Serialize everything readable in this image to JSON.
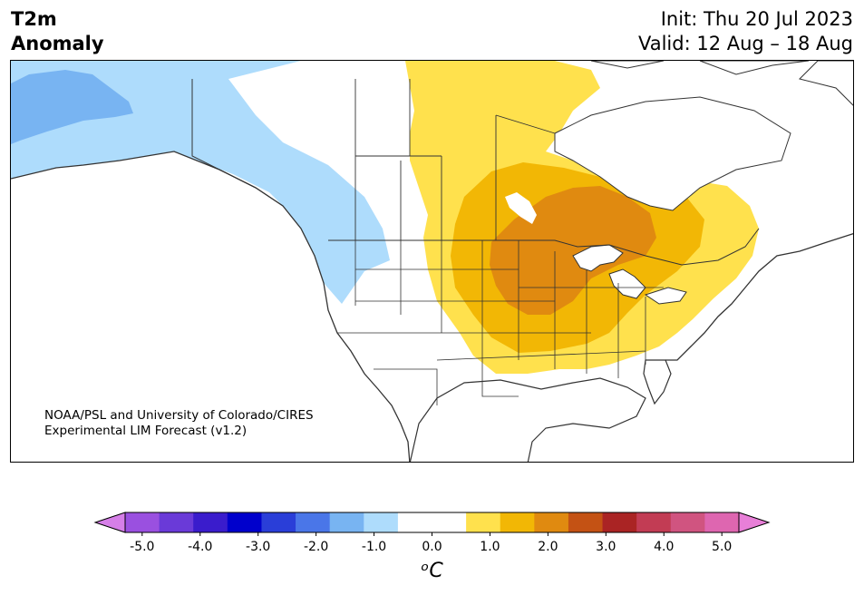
{
  "header": {
    "title_line1": "T2m",
    "title_line2": "Anomaly",
    "init": "Init: Thu 20 Jul 2023",
    "valid": "Valid: 12 Aug – 18 Aug"
  },
  "credit": {
    "line1": "NOAA/PSL and University of Colorado/CIRES",
    "line2": "Experimental LIM Forecast (v1.2)"
  },
  "colorbar": {
    "unit_label": "ᵒC",
    "ticks": [
      "-5.0",
      "-4.0",
      "-3.0",
      "-2.0",
      "-1.0",
      "0.0",
      "1.0",
      "2.0",
      "3.0",
      "4.0",
      "5.0"
    ],
    "under_color": "#d67fe8",
    "over_color": "#e87fd8",
    "colors": [
      "#d67fe8",
      "#9a50e0",
      "#6a3ad8",
      "#3a1ccc",
      "#0000cc",
      "#2a3ed8",
      "#4a76e8",
      "#78b4f2",
      "#aedcfc",
      "#ffffff",
      "#ffffff",
      "#ffe14d",
      "#f2b705",
      "#e08a10",
      "#c45214",
      "#aa2424",
      "#c23c54",
      "#d05480",
      "#de66b0",
      "#e87fd8"
    ]
  },
  "legend_colors": {
    "cold_light": "#aedcfc",
    "cold_mid": "#78b4f2",
    "warm_light": "#ffe14d",
    "warm_mid": "#f2b705",
    "warm_strong": "#e08a10"
  }
}
